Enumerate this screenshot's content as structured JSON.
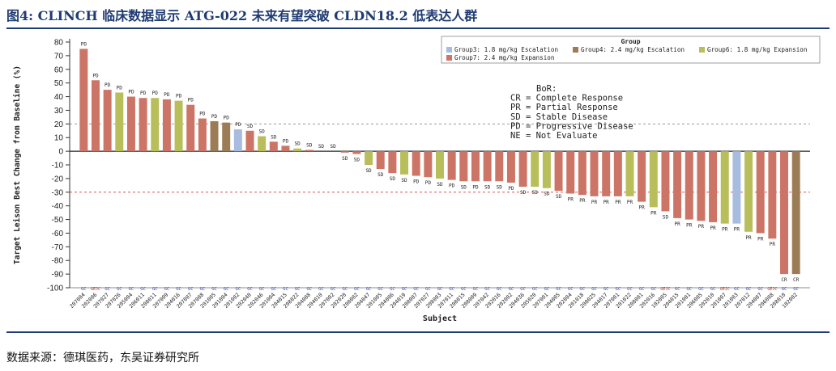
{
  "header": {
    "title": "图4:  CLINCH 临床数据显示 ATG-022 未来有望突破 CLDN18.2 低表达人群"
  },
  "footer": {
    "source": "数据来源：德琪医药，东吴证券研究所"
  },
  "chart_data": {
    "type": "bar",
    "xlabel": "Subject",
    "ylabel": "Target Leison Best Change from Baseline (%)",
    "ylim": [
      -100,
      80
    ],
    "yticks": [
      80,
      70,
      60,
      50,
      40,
      30,
      20,
      10,
      0,
      -10,
      -20,
      -30,
      -40,
      -50,
      -60,
      -70,
      -80,
      -90,
      -100
    ],
    "reference_lines": [
      20,
      -30
    ],
    "legend": {
      "title": "Group",
      "position": "top-right",
      "entries": [
        {
          "key": "g3",
          "label": "Group3: 1.8 mg/kg Escalation",
          "color": "#a7bcdf"
        },
        {
          "key": "g4",
          "label": "Group4: 2.4 mg/kg Escalation",
          "color": "#9c7c57"
        },
        {
          "key": "g6",
          "label": "Group6: 1.8 mg/kg Expansion",
          "color": "#b8be5a"
        },
        {
          "key": "g7",
          "label": "Group7: 2.4 mg/kg Expansion",
          "color": "#cc7466"
        }
      ]
    },
    "bor_legend": [
      "BoR:",
      "CR = Complete Response",
      "PR = Partial Response",
      "SD = Stable Disease",
      "PD = Progressive Disease",
      "NE = Not Evaluate"
    ],
    "bars": [
      {
        "subject": "207004",
        "value": 75,
        "group": "g7",
        "bor": "PD",
        "gc": "GC"
      },
      {
        "subject": "202006",
        "value": 52,
        "group": "g7",
        "bor": "PD",
        "gc": "GEJC"
      },
      {
        "subject": "207027",
        "value": 45,
        "group": "g7",
        "bor": "PD",
        "gc": "GC"
      },
      {
        "subject": "207026",
        "value": 43,
        "group": "g6",
        "bor": "PD",
        "gc": "GC"
      },
      {
        "subject": "205004",
        "value": 40,
        "group": "g7",
        "bor": "PD",
        "gc": "GC"
      },
      {
        "subject": "206011",
        "value": 39,
        "group": "g7",
        "bor": "PD",
        "gc": "GC"
      },
      {
        "subject": "208011",
        "value": 39,
        "group": "g6",
        "bor": "PD",
        "gc": "GC"
      },
      {
        "subject": "207009",
        "value": 38,
        "group": "g7",
        "bor": "PD",
        "gc": "GC"
      },
      {
        "subject": "204016",
        "value": 37,
        "group": "g6",
        "bor": "PD",
        "gc": "GC"
      },
      {
        "subject": "207007",
        "value": 34,
        "group": "g7",
        "bor": "PD",
        "gc": "GC"
      },
      {
        "subject": "207008",
        "value": 24,
        "group": "g7",
        "bor": "PD",
        "gc": "GC"
      },
      {
        "subject": "201005",
        "value": 22,
        "group": "g4",
        "bor": "PD",
        "gc": "GC"
      },
      {
        "subject": "201004",
        "value": 21,
        "group": "g4",
        "bor": "PD",
        "gc": "GC"
      },
      {
        "subject": "201002",
        "value": 16,
        "group": "g3",
        "bor": "PD",
        "gc": "GC"
      },
      {
        "subject": "202040",
        "value": 15,
        "group": "g7",
        "bor": "SD",
        "gc": "GC"
      },
      {
        "subject": "202046",
        "value": 11,
        "group": "g6",
        "bor": "SD",
        "gc": "GC"
      },
      {
        "subject": "201004",
        "value": 7,
        "group": "g7",
        "bor": "SD",
        "gc": "GC"
      },
      {
        "subject": "204015",
        "value": 4,
        "group": "g7",
        "bor": "PD",
        "gc": "GC"
      },
      {
        "subject": "208022",
        "value": 2,
        "group": "g6",
        "bor": "SD",
        "gc": "GC"
      },
      {
        "subject": "204008",
        "value": 1,
        "group": "g7",
        "bor": "SD",
        "gc": "GC"
      },
      {
        "subject": "204010",
        "value": 0,
        "group": "g7",
        "bor": "SD",
        "gc": "GC"
      },
      {
        "subject": "207002",
        "value": 0,
        "group": "g7",
        "bor": "SD",
        "gc": "GC"
      },
      {
        "subject": "202020",
        "value": -1,
        "group": "g7",
        "bor": "SD",
        "gc": "GC"
      },
      {
        "subject": "208002",
        "value": -2,
        "group": "g7",
        "bor": "SD",
        "gc": "GC"
      },
      {
        "subject": "204047",
        "value": -10,
        "group": "g6",
        "bor": "SD",
        "gc": "GC"
      },
      {
        "subject": "201005",
        "value": -13,
        "group": "g7",
        "bor": "SD",
        "gc": "GC"
      },
      {
        "subject": "204006",
        "value": -16,
        "group": "g7",
        "bor": "SD",
        "gc": "GC"
      },
      {
        "subject": "204019",
        "value": -17,
        "group": "g6",
        "bor": "SD",
        "gc": "GC"
      },
      {
        "subject": "208007",
        "value": -18,
        "group": "g7",
        "bor": "PD",
        "gc": "GC"
      },
      {
        "subject": "207027",
        "value": -19,
        "group": "g7",
        "bor": "PD",
        "gc": "GC"
      },
      {
        "subject": "208003",
        "value": -20,
        "group": "g6",
        "bor": "SD",
        "gc": "GC"
      },
      {
        "subject": "207011",
        "value": -21,
        "group": "g7",
        "bor": "PD",
        "gc": "GC"
      },
      {
        "subject": "208015",
        "value": -22,
        "group": "g7",
        "bor": "SD",
        "gc": "GC"
      },
      {
        "subject": "208009",
        "value": -22,
        "group": "g7",
        "bor": "PD",
        "gc": "GC"
      },
      {
        "subject": "207042",
        "value": -22,
        "group": "g7",
        "bor": "SD",
        "gc": "GC"
      },
      {
        "subject": "202016",
        "value": -22,
        "group": "g7",
        "bor": "SD",
        "gc": "GC"
      },
      {
        "subject": "202002",
        "value": -23,
        "group": "g7",
        "bor": "PD",
        "gc": "GC"
      },
      {
        "subject": "204036",
        "value": -26,
        "group": "g7",
        "bor": "SD",
        "gc": "GC"
      },
      {
        "subject": "205020",
        "value": -26,
        "group": "g6",
        "bor": "SD",
        "gc": "GC"
      },
      {
        "subject": "207001",
        "value": -27,
        "group": "g6",
        "bor": "SD",
        "gc": "GC"
      },
      {
        "subject": "204005",
        "value": -29,
        "group": "g7",
        "bor": "SD",
        "gc": "GC"
      },
      {
        "subject": "202004",
        "value": -31,
        "group": "g7",
        "bor": "PR",
        "gc": "GC"
      },
      {
        "subject": "201018",
        "value": -32,
        "group": "g7",
        "bor": "PR",
        "gc": "GC"
      },
      {
        "subject": "208025",
        "value": -33,
        "group": "g7",
        "bor": "PR",
        "gc": "GC"
      },
      {
        "subject": "204017",
        "value": -33,
        "group": "g7",
        "bor": "PR",
        "gc": "GC"
      },
      {
        "subject": "207001",
        "value": -33,
        "group": "g7",
        "bor": "PR",
        "gc": "GC"
      },
      {
        "subject": "201022",
        "value": -33,
        "group": "g6",
        "bor": "PR",
        "gc": "GC"
      },
      {
        "subject": "208001",
        "value": -37,
        "group": "g7",
        "bor": "PR",
        "gc": "GC"
      },
      {
        "subject": "202016",
        "value": -41,
        "group": "g6",
        "bor": "PR",
        "gc": "GC"
      },
      {
        "subject": "102005",
        "value": -44,
        "group": "g7",
        "bor": "SD",
        "gc": "GEJC"
      },
      {
        "subject": "204015",
        "value": -49,
        "group": "g7",
        "bor": "PR",
        "gc": "GC"
      },
      {
        "subject": "201001",
        "value": -50,
        "group": "g7",
        "bor": "PR",
        "gc": "GC"
      },
      {
        "subject": "206005",
        "value": -51,
        "group": "g7",
        "bor": "PR",
        "gc": "GC"
      },
      {
        "subject": "202010",
        "value": -52,
        "group": "g7",
        "bor": "PR",
        "gc": "GC"
      },
      {
        "subject": "201007",
        "value": -53,
        "group": "g6",
        "bor": "PR",
        "gc": "GEJC"
      },
      {
        "subject": "201003",
        "value": -53,
        "group": "g3",
        "bor": "PR",
        "gc": "GC"
      },
      {
        "subject": "207012",
        "value": -59,
        "group": "g6",
        "bor": "PR",
        "gc": "GC"
      },
      {
        "subject": "204007",
        "value": -60,
        "group": "g7",
        "bor": "PR",
        "gc": "GC"
      },
      {
        "subject": "206008",
        "value": -64,
        "group": "g7",
        "bor": "PR",
        "gc": "GEJC"
      },
      {
        "subject": "208010",
        "value": -90,
        "group": "g7",
        "bor": "CR",
        "gc": "GC"
      },
      {
        "subject": "102002",
        "value": -90,
        "group": "g4",
        "bor": "CR",
        "gc": "GC"
      }
    ]
  }
}
